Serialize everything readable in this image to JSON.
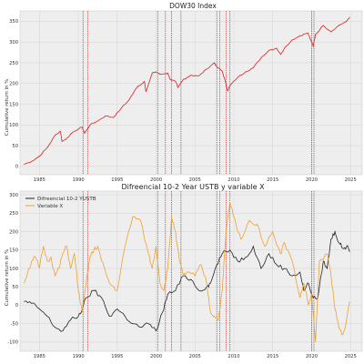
{
  "chart_data": [
    {
      "type": "line",
      "title": "DOW30 Index",
      "xlabel": "",
      "ylabel": "Cumulative return in %",
      "xlim": [
        1982.5,
        2026.5
      ],
      "ylim": [
        -20,
        375
      ],
      "x_ticks": [
        1985,
        1990,
        1995,
        2000,
        2005,
        2010,
        2015,
        2020,
        2025
      ],
      "y_ticks": [
        0,
        50,
        100,
        150,
        200,
        250,
        300,
        350
      ],
      "grid": true,
      "background": "#eeeeee",
      "series": [
        {
          "color": "#e41a1c",
          "x": [
            1983.0,
            1984.0,
            1985.0,
            1986.0,
            1987.0,
            1987.7,
            1987.9,
            1988.5,
            1989.5,
            1990.5,
            1990.8,
            1991.5,
            1992.5,
            1993.5,
            1994.5,
            1995.5,
            1996.5,
            1997.5,
            1998.5,
            1998.7,
            1999.5,
            2000.0,
            2000.5,
            2001.5,
            2001.8,
            2002.5,
            2002.8,
            2003.5,
            2004.5,
            2005.5,
            2006.5,
            2007.5,
            2007.8,
            2008.5,
            2008.9,
            2009.2,
            2009.5,
            2010.5,
            2011.5,
            2012.5,
            2013.5,
            2014.5,
            2015.5,
            2016.0,
            2016.5,
            2017.5,
            2018.5,
            2019.5,
            2020.2,
            2020.5,
            2021.5,
            2022.5,
            2023.5,
            2024.5,
            2024.9
          ],
          "y": [
            5,
            12,
            25,
            45,
            75,
            85,
            60,
            68,
            85,
            95,
            80,
            100,
            110,
            122,
            118,
            140,
            160,
            190,
            205,
            180,
            225,
            228,
            222,
            225,
            210,
            205,
            190,
            210,
            220,
            218,
            235,
            250,
            240,
            230,
            205,
            182,
            195,
            215,
            228,
            238,
            262,
            280,
            285,
            270,
            285,
            305,
            315,
            322,
            290,
            318,
            340,
            325,
            340,
            350,
            360
          ]
        }
      ]
    },
    {
      "type": "line",
      "title": "Difreencial 10-2 Year USTB  y variable X",
      "xlabel": "",
      "ylabel": "Cumulative return in %",
      "xlim": [
        1982.5,
        2026.5
      ],
      "ylim": [
        -125,
        310
      ],
      "x_ticks": [
        1985,
        1990,
        1995,
        2000,
        2005,
        2010,
        2015,
        2020,
        2025
      ],
      "y_ticks": [
        -100,
        -50,
        0,
        50,
        100,
        150,
        200,
        250,
        300
      ],
      "grid": true,
      "legend": "top-left",
      "background": "#eeeeee",
      "series": [
        {
          "name": "Difreencial 10-2 YUSTB",
          "color": "#222222",
          "x": [
            1983.0,
            1984.0,
            1985.0,
            1986.0,
            1987.0,
            1988.0,
            1989.0,
            1990.0,
            1990.5,
            1991.0,
            1992.0,
            1993.0,
            1994.0,
            1995.0,
            1996.0,
            1997.0,
            1998.0,
            1999.0,
            2000.0,
            2000.8,
            2001.5,
            2002.5,
            2003.5,
            2004.5,
            2005.5,
            2006.5,
            2007.0,
            2007.8,
            2008.5,
            2009.5,
            2010.5,
            2011.5,
            2012.5,
            2013.5,
            2014.5,
            2015.5,
            2016.5,
            2017.5,
            2018.5,
            2019.0,
            2019.6,
            2020.2,
            2020.8,
            2021.5,
            2022.0,
            2022.5,
            2023.0,
            2023.5,
            2024.0,
            2024.5,
            2024.9
          ],
          "y": [
            10,
            5,
            -10,
            -30,
            -60,
            -70,
            -40,
            -30,
            -10,
            20,
            40,
            20,
            -30,
            -10,
            -30,
            -50,
            -60,
            -50,
            -70,
            -20,
            30,
            40,
            80,
            70,
            40,
            50,
            60,
            110,
            140,
            150,
            120,
            130,
            160,
            100,
            140,
            110,
            100,
            80,
            90,
            40,
            60,
            20,
            20,
            120,
            100,
            180,
            200,
            170,
            155,
            160,
            145
          ]
        },
        {
          "name": "Variable X",
          "color": "#f0a030",
          "x": [
            1983.0,
            1983.5,
            1984.0,
            1984.5,
            1985.0,
            1985.5,
            1986.0,
            1986.5,
            1987.0,
            1987.5,
            1988.0,
            1988.5,
            1989.0,
            1989.5,
            1990.0,
            1990.5,
            1991.0,
            1991.5,
            1992.0,
            1992.5,
            1993.0,
            1993.5,
            1994.0,
            1995.0,
            1996.0,
            1997.0,
            1998.0,
            1999.0,
            1999.5,
            2000.0,
            2000.5,
            2001.0,
            2001.5,
            2002.0,
            2002.5,
            2003.0,
            2003.5,
            2004.0,
            2005.0,
            2005.8,
            2006.5,
            2007.0,
            2007.5,
            2008.0,
            2008.5,
            2009.0,
            2009.5,
            2010.0,
            2010.5,
            2011.0,
            2012.0,
            2013.0,
            2014.0,
            2015.0,
            2016.0,
            2016.5,
            2017.5,
            2018.5,
            2019.0,
            2019.6,
            2020.0,
            2020.5,
            2021.0,
            2022.0,
            2022.5,
            2023.0,
            2023.5,
            2024.0,
            2024.5,
            2024.9
          ],
          "y": [
            60,
            90,
            120,
            130,
            100,
            160,
            120,
            130,
            80,
            100,
            140,
            160,
            100,
            140,
            40,
            -20,
            60,
            130,
            150,
            160,
            120,
            90,
            60,
            40,
            160,
            240,
            230,
            140,
            100,
            160,
            60,
            40,
            100,
            240,
            200,
            120,
            80,
            90,
            80,
            110,
            60,
            -20,
            -30,
            -40,
            40,
            200,
            280,
            240,
            200,
            180,
            230,
            220,
            160,
            200,
            140,
            170,
            120,
            20,
            60,
            0,
            30,
            -100,
            120,
            140,
            80,
            -10,
            -60,
            -80,
            -40,
            10
          ]
        }
      ]
    }
  ],
  "event_lines": [
    {
      "x": 1990.6,
      "color": "#555555"
    },
    {
      "x": 1991.2,
      "color": "#d62728"
    },
    {
      "x": 2000.2,
      "color": "#2c7a2c"
    },
    {
      "x": 2001.2,
      "color": "#d62728"
    },
    {
      "x": 2002.0,
      "color": "#555555"
    },
    {
      "x": 2003.2,
      "color": "#555555"
    },
    {
      "x": 2007.8,
      "color": "#555555"
    },
    {
      "x": 2008.2,
      "color": "#d62728"
    },
    {
      "x": 2009.0,
      "color": "#d62728"
    },
    {
      "x": 2009.5,
      "color": "#555555"
    },
    {
      "x": 2020.0,
      "color": "#555555"
    },
    {
      "x": 2020.3,
      "color": "#555555"
    }
  ]
}
